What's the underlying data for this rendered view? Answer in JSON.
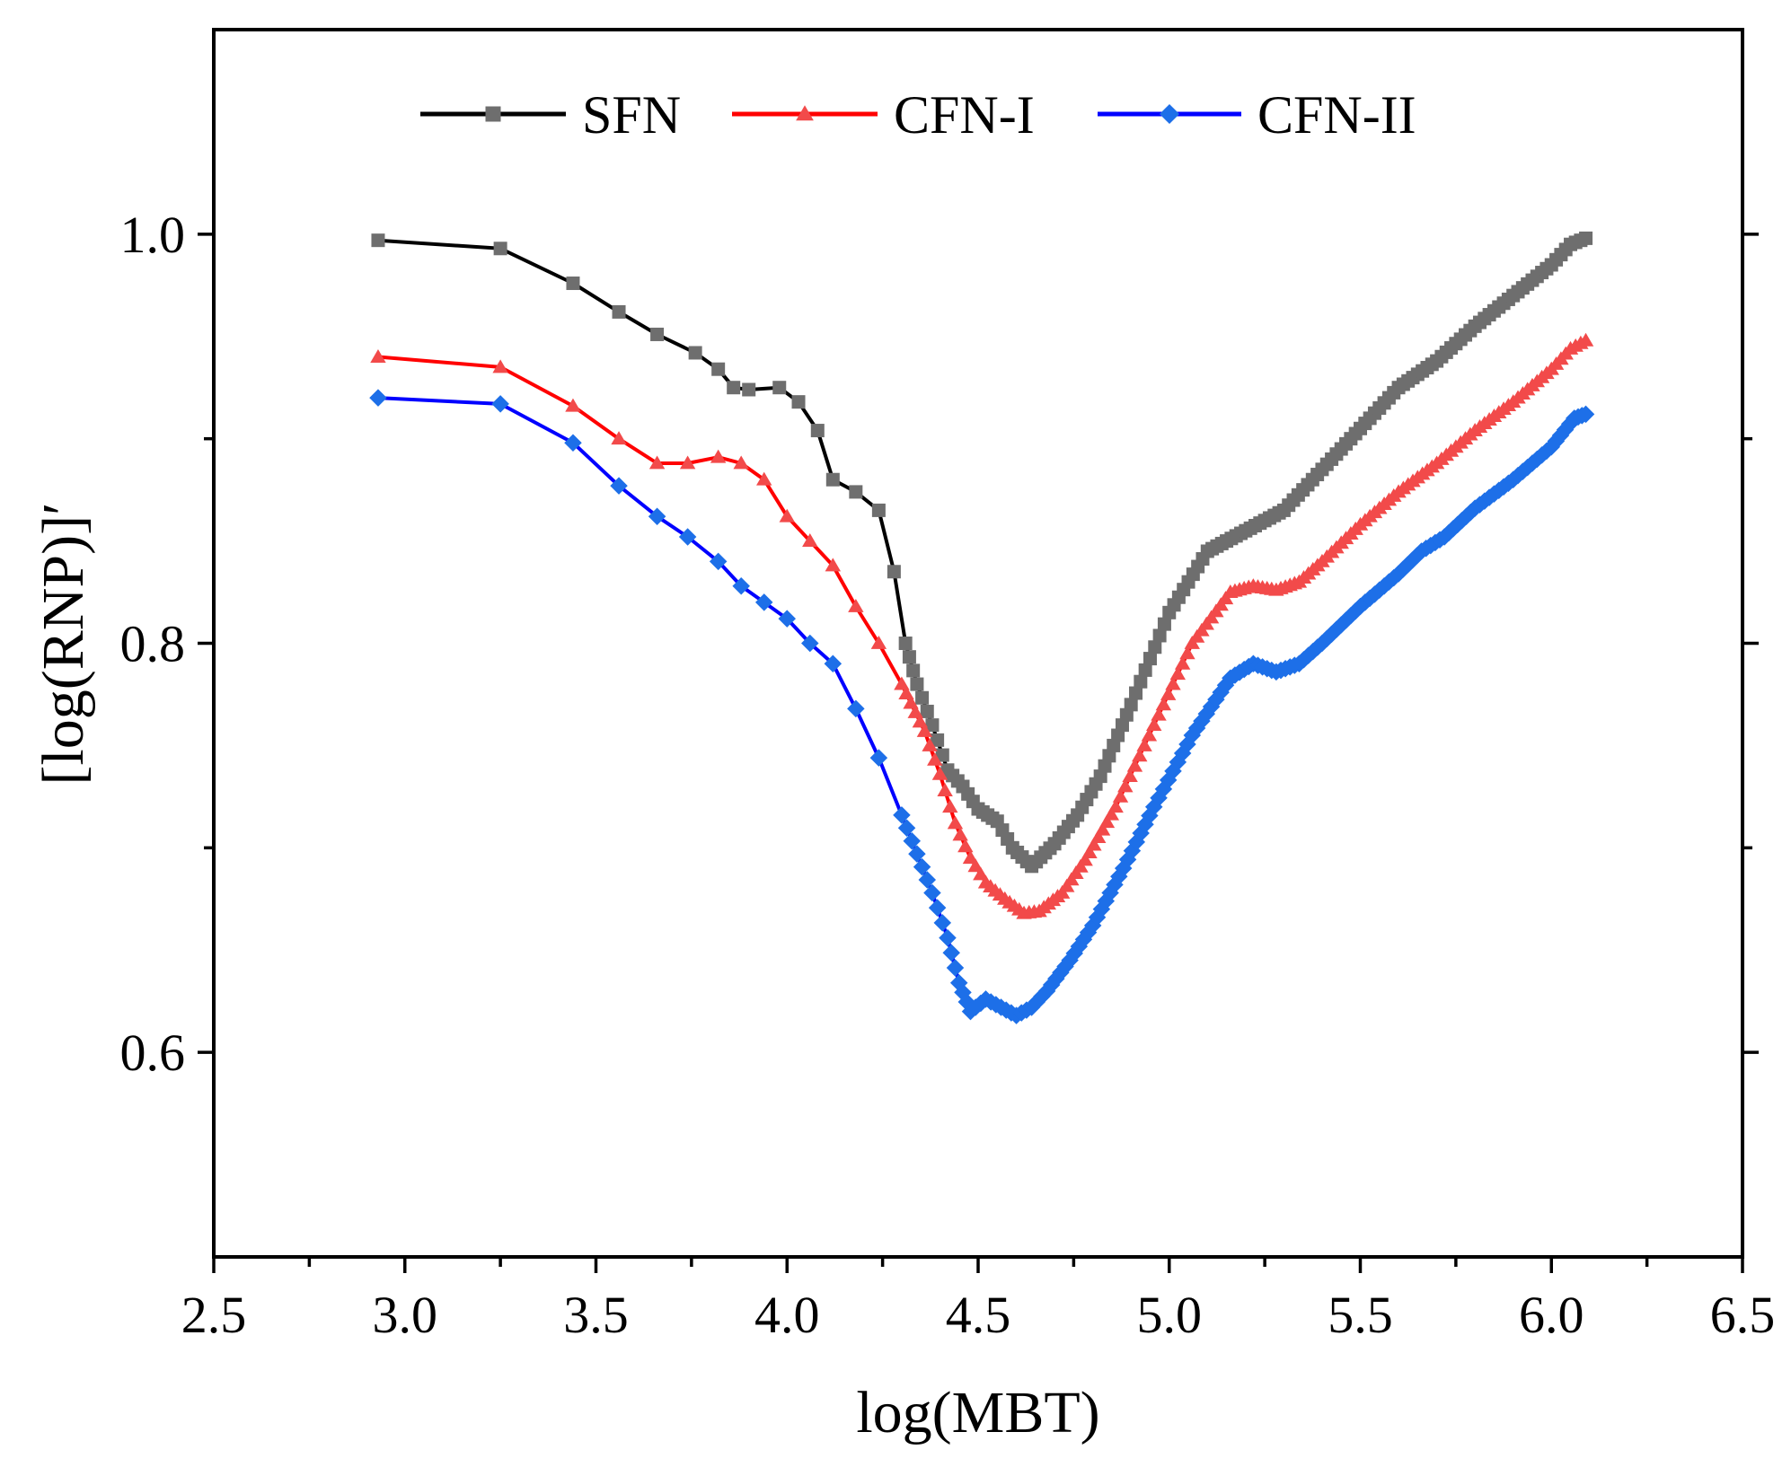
{
  "chart_data": {
    "type": "line",
    "title": "",
    "xlabel": "log(MBT)",
    "ylabel": "[log(RNP)]′",
    "xlim": [
      2.5,
      6.5
    ],
    "ylim": [
      0.5,
      1.1
    ],
    "x_ticks": [
      "2.5",
      "3.0",
      "3.5",
      "4.0",
      "4.5",
      "5.0",
      "5.5",
      "6.0",
      "6.5"
    ],
    "y_ticks": [
      "0.6",
      "0.8",
      "1.0"
    ],
    "legend": {
      "placement": "top-center",
      "entries": [
        "SFN",
        "CFN-I",
        "CFN-II"
      ]
    },
    "series": [
      {
        "name": "SFN",
        "line_color": "#000000",
        "marker_color": "#6e6e6e",
        "marker": "square",
        "x": [
          2.93,
          3.25,
          3.44,
          3.56,
          3.66,
          3.76,
          3.82,
          3.86,
          3.9,
          3.98,
          4.03,
          4.08,
          4.12,
          4.18,
          4.24,
          4.28,
          4.31,
          4.34,
          4.38,
          4.42,
          4.46,
          4.5,
          4.55,
          4.59,
          4.64,
          4.7,
          4.76,
          4.82,
          4.9,
          5.0,
          5.1,
          5.2,
          5.3,
          5.4,
          5.5,
          5.6,
          5.7,
          5.8,
          5.9,
          6.0,
          6.05,
          6.09
        ],
        "y": [
          0.997,
          0.993,
          0.976,
          0.962,
          0.951,
          0.942,
          0.934,
          0.925,
          0.924,
          0.925,
          0.918,
          0.904,
          0.88,
          0.874,
          0.865,
          0.835,
          0.8,
          0.78,
          0.76,
          0.738,
          0.73,
          0.719,
          0.713,
          0.7,
          0.691,
          0.702,
          0.716,
          0.735,
          0.77,
          0.815,
          0.845,
          0.855,
          0.865,
          0.885,
          0.905,
          0.925,
          0.938,
          0.955,
          0.97,
          0.985,
          0.995,
          0.998
        ]
      },
      {
        "name": "CFN-I",
        "line_color": "#ff0000",
        "marker_color": "#f24a4a",
        "marker": "triangle",
        "x": [
          2.93,
          3.25,
          3.44,
          3.56,
          3.66,
          3.74,
          3.82,
          3.88,
          3.94,
          4.0,
          4.06,
          4.12,
          4.18,
          4.24,
          4.3,
          4.36,
          4.4,
          4.44,
          4.48,
          4.52,
          4.57,
          4.62,
          4.66,
          4.72,
          4.78,
          4.86,
          4.96,
          5.06,
          5.16,
          5.22,
          5.28,
          5.34,
          5.4,
          5.5,
          5.6,
          5.7,
          5.8,
          5.9,
          6.0,
          6.05,
          6.09
        ],
        "y": [
          0.94,
          0.935,
          0.916,
          0.9,
          0.888,
          0.888,
          0.891,
          0.888,
          0.88,
          0.862,
          0.85,
          0.838,
          0.818,
          0.8,
          0.78,
          0.757,
          0.736,
          0.712,
          0.695,
          0.683,
          0.675,
          0.668,
          0.669,
          0.678,
          0.694,
          0.72,
          0.76,
          0.8,
          0.825,
          0.828,
          0.826,
          0.83,
          0.84,
          0.858,
          0.874,
          0.888,
          0.904,
          0.918,
          0.934,
          0.944,
          0.948
        ]
      },
      {
        "name": "CFN-II",
        "line_color": "#0000ff",
        "marker_color": "#1d6fe8",
        "marker": "diamond",
        "x": [
          2.93,
          3.25,
          3.44,
          3.56,
          3.66,
          3.74,
          3.82,
          3.88,
          3.94,
          4.0,
          4.06,
          4.12,
          4.18,
          4.24,
          4.3,
          4.34,
          4.38,
          4.42,
          4.45,
          4.48,
          4.52,
          4.56,
          4.6,
          4.64,
          4.68,
          4.74,
          4.8,
          4.88,
          4.96,
          5.06,
          5.16,
          5.22,
          5.28,
          5.34,
          5.4,
          5.5,
          5.6,
          5.66,
          5.72,
          5.8,
          5.9,
          6.0,
          6.06,
          6.09
        ],
        "y": [
          0.92,
          0.917,
          0.898,
          0.877,
          0.862,
          0.852,
          0.84,
          0.828,
          0.82,
          0.812,
          0.8,
          0.79,
          0.768,
          0.744,
          0.716,
          0.697,
          0.678,
          0.656,
          0.634,
          0.62,
          0.626,
          0.622,
          0.618,
          0.622,
          0.63,
          0.645,
          0.662,
          0.69,
          0.72,
          0.755,
          0.783,
          0.79,
          0.786,
          0.79,
          0.8,
          0.818,
          0.834,
          0.845,
          0.852,
          0.866,
          0.88,
          0.896,
          0.91,
          0.912
        ]
      }
    ]
  }
}
